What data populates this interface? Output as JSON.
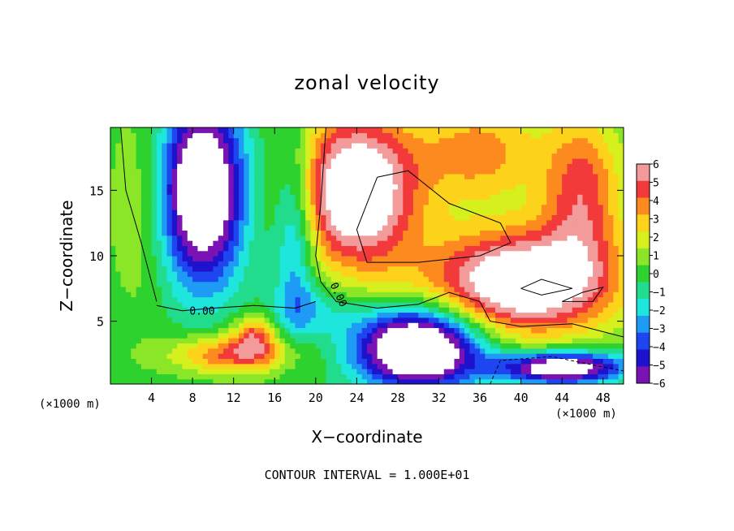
{
  "chart_data": {
    "type": "heatmap",
    "title": "zonal velocity",
    "xlabel": "X−coordinate",
    "ylabel": "Z−coordinate",
    "x_unit_label": "(×1000 m)",
    "z_unit_label": "(×1000 m)",
    "footnote": "CONTOUR INTERVAL = 1.000E+01",
    "xlim": [
      0,
      50
    ],
    "ylim": [
      0.2,
      19.8
    ],
    "x_ticks": [
      "4",
      "8",
      "12",
      "16",
      "20",
      "24",
      "28",
      "32",
      "36",
      "40",
      "44",
      "48"
    ],
    "y_ticks": [
      "5",
      "10",
      "15"
    ],
    "colorbar": {
      "range": [
        -6,
        6
      ],
      "tick_labels": [
        "6",
        "5",
        "4",
        "3",
        "2",
        "1",
        "0",
        "−1",
        "−2",
        "−3",
        "−4",
        "−5",
        "−6"
      ],
      "colors": [
        "#f39a9a",
        "#f23a3a",
        "#fd8a1e",
        "#fdd21a",
        "#d6f01e",
        "#8ce628",
        "#2ed22e",
        "#20dc8c",
        "#1ee6dc",
        "#1e9bf5",
        "#1e46f0",
        "#1e12cc",
        "#7a12b4"
      ]
    },
    "contour_labels": [
      "0.00",
      "0.00"
    ],
    "color_scale_note": "values outside colorbar range drawn white"
  }
}
